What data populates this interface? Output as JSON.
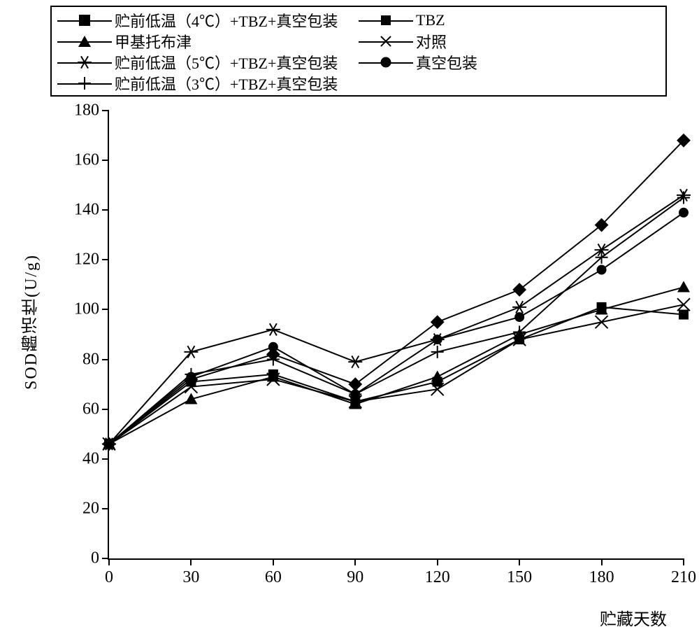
{
  "chart": {
    "type": "line",
    "xlabel": "贮藏天数",
    "ylabel": "SOD酶活性(U/g)",
    "background_color": "#ffffff",
    "axis_color": "#000000",
    "line_color": "#000000",
    "line_width": 2,
    "font_family": "SimSun",
    "label_fontsize": 24,
    "tick_fontsize": 24,
    "legend_fontsize": 22,
    "xlim": [
      0,
      210
    ],
    "ylim": [
      0,
      180
    ],
    "xtick_step": 30,
    "ytick_step": 20,
    "xticks": [
      0,
      30,
      60,
      90,
      120,
      150,
      180,
      210
    ],
    "yticks": [
      0,
      20,
      40,
      60,
      80,
      100,
      120,
      140,
      160,
      180
    ],
    "legend_border_color": "#000000",
    "legend_columns": 2,
    "legend_rows": 4,
    "series": [
      {
        "id": "s1",
        "label": "贮前低温（4℃）+TBZ+真空包装",
        "marker": "diamond",
        "x": [
          0,
          30,
          60,
          90,
          120,
          150,
          180,
          210
        ],
        "y": [
          46,
          72,
          82,
          70,
          95,
          108,
          134,
          168
        ]
      },
      {
        "id": "s2",
        "label": "TBZ",
        "marker": "square",
        "x": [
          0,
          30,
          60,
          90,
          120,
          150,
          180,
          210
        ],
        "y": [
          46,
          71,
          74,
          63,
          71,
          88,
          101,
          98
        ]
      },
      {
        "id": "s3",
        "label": "甲基托布津",
        "marker": "triangle",
        "x": [
          0,
          30,
          60,
          90,
          120,
          150,
          180,
          210
        ],
        "y": [
          46,
          64,
          73,
          62,
          73,
          90,
          100,
          109
        ]
      },
      {
        "id": "s4",
        "label": "对照",
        "marker": "x",
        "x": [
          0,
          30,
          60,
          90,
          120,
          150,
          180,
          210
        ],
        "y": [
          46,
          69,
          72,
          63,
          68,
          88,
          95,
          102
        ]
      },
      {
        "id": "s5",
        "label": "贮前低温（5℃）+TBZ+真空包装",
        "marker": "asterisk",
        "x": [
          0,
          30,
          60,
          90,
          120,
          150,
          180,
          210
        ],
        "y": [
          46,
          83,
          92,
          79,
          88,
          101,
          124,
          146
        ]
      },
      {
        "id": "s6",
        "label": "真空包装",
        "marker": "circle",
        "x": [
          0,
          30,
          60,
          90,
          120,
          150,
          180,
          210
        ],
        "y": [
          46,
          73,
          85,
          66,
          88,
          97,
          116,
          139
        ]
      },
      {
        "id": "s7",
        "label": "贮前低温（3℃）+TBZ+真空包装",
        "marker": "plus",
        "x": [
          0,
          30,
          60,
          90,
          120,
          150,
          180,
          210
        ],
        "y": [
          46,
          74,
          80,
          66,
          83,
          91,
          121,
          145
        ]
      }
    ],
    "legend_order": [
      "s1",
      "s2",
      "s3",
      "s4",
      "s5",
      "s6",
      "s7"
    ]
  }
}
